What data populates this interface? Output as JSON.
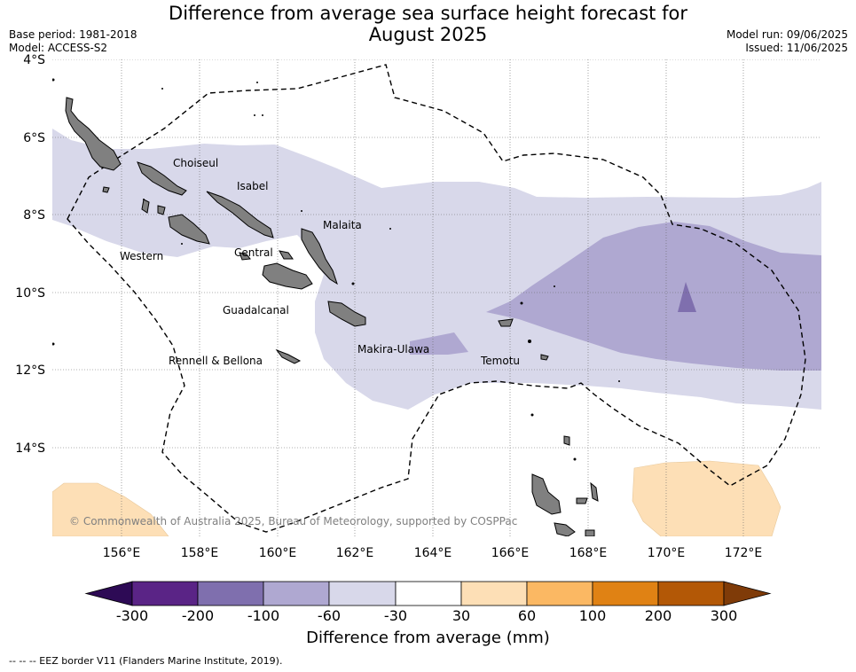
{
  "title_line1": "Difference from average sea surface height forecast for",
  "title_line2": "August 2025",
  "base_period": "Base period: 1981-2018",
  "model": "Model: ACCESS-S2",
  "model_run": "Model run: 09/06/2025",
  "issued": "Issued: 11/06/2025",
  "copyright": "© Commonwealth of Australia 2025, Bureau of Meteorology, supported by COSPPac",
  "lat_labels": [
    "4°S",
    "6°S",
    "8°S",
    "10°S",
    "12°S",
    "14°S"
  ],
  "lon_labels": [
    "156°E",
    "158°E",
    "160°E",
    "162°E",
    "164°E",
    "166°E",
    "168°E",
    "170°E",
    "172°E"
  ],
  "provinces": [
    "Choiseul",
    "Isabel",
    "Malaita",
    "Western",
    "Central",
    "Guadalcanal",
    "Makira-Ulawa",
    "Rennell & Bellona",
    "Temotu"
  ],
  "colorbar": {
    "title": "Difference from average (mm)",
    "ticks": [
      "-300",
      "-200",
      "-100",
      "-60",
      "-30",
      "30",
      "60",
      "100",
      "200",
      "300"
    ],
    "colors": [
      "#2d0a55",
      "#5a2486",
      "#7f6fae",
      "#afa8d1",
      "#d8d8ea",
      "#ffffff",
      "#fddfb6",
      "#fbb863",
      "#e08214",
      "#b35806",
      "#7f3b08"
    ]
  },
  "eez_note": "--  --  -- EEZ border V11 (Flanders Marine Institute, 2019)."
}
